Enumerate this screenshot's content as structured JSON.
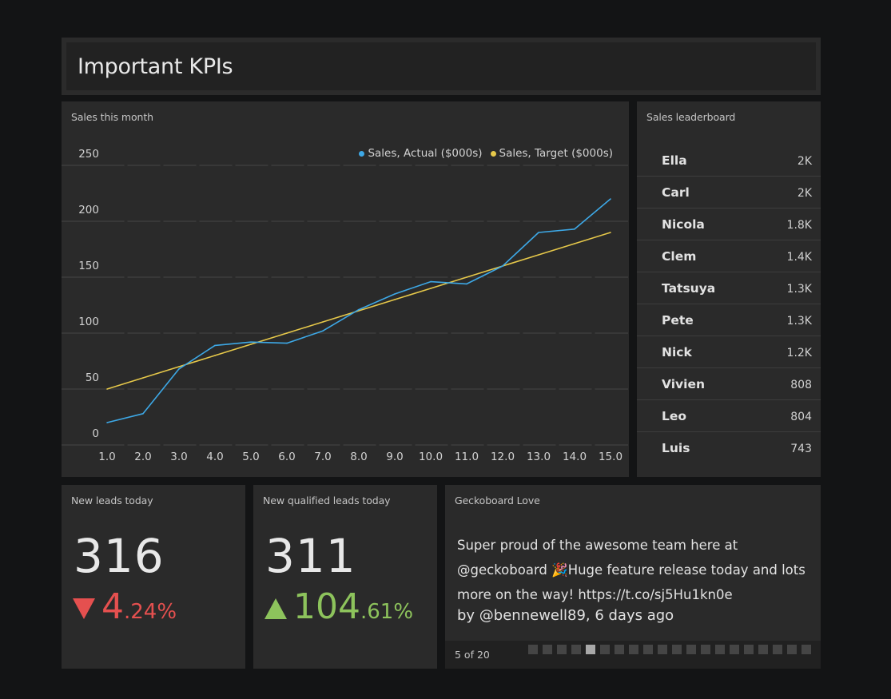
{
  "header": {
    "title": "Important KPIs"
  },
  "colors": {
    "background": "#131415",
    "panel": "#2a2a2a",
    "actual": "#3da8e6",
    "target": "#e6c84a",
    "negative": "#e5504f",
    "positive": "#8dc35c"
  },
  "sales_chart": {
    "title": "Sales this month",
    "legend": [
      {
        "label": "Sales, Actual ($000s)",
        "color": "#3da8e6"
      },
      {
        "label": "Sales, Target ($000s)",
        "color": "#e6c84a"
      }
    ]
  },
  "chart_data": {
    "type": "line",
    "title": "Sales this month",
    "xlabel": "",
    "ylabel": "",
    "x": [
      1.0,
      2.0,
      3.0,
      4.0,
      5.0,
      6.0,
      7.0,
      8.0,
      9.0,
      10.0,
      11.0,
      12.0,
      13.0,
      14.0,
      15.0
    ],
    "x_tick_labels": [
      "1.0",
      "2.0",
      "3.0",
      "4.0",
      "5.0",
      "6.0",
      "7.0",
      "8.0",
      "9.0",
      "10.0",
      "11.0",
      "12.0",
      "13.0",
      "14.0",
      "15.0"
    ],
    "y_ticks": [
      0,
      50,
      100,
      150,
      200,
      250
    ],
    "ylim": [
      0,
      250
    ],
    "xlim": [
      1,
      15
    ],
    "grid": true,
    "legend_position": "top-right",
    "series": [
      {
        "name": "Sales, Actual ($000s)",
        "color": "#3da8e6",
        "values": [
          20,
          28,
          68,
          89,
          92,
          91,
          102,
          121,
          135,
          146,
          144,
          160,
          190,
          193,
          220
        ]
      },
      {
        "name": "Sales, Target ($000s)",
        "color": "#e6c84a",
        "values": [
          50,
          60,
          70,
          80,
          90,
          100,
          110,
          120,
          130,
          140,
          150,
          160,
          170,
          180,
          190
        ]
      }
    ]
  },
  "leaderboard": {
    "title": "Sales leaderboard",
    "rows": [
      {
        "name": "Ella",
        "value": "2K"
      },
      {
        "name": "Carl",
        "value": "2K"
      },
      {
        "name": "Nicola",
        "value": "1.8K"
      },
      {
        "name": "Clem",
        "value": "1.4K"
      },
      {
        "name": "Tatsuya",
        "value": "1.3K"
      },
      {
        "name": "Pete",
        "value": "1.3K"
      },
      {
        "name": "Nick",
        "value": "1.2K"
      },
      {
        "name": "Vivien",
        "value": "808"
      },
      {
        "name": "Leo",
        "value": "804"
      },
      {
        "name": "Luis",
        "value": "743"
      }
    ]
  },
  "new_leads": {
    "title": "New leads today",
    "value": "316",
    "delta_direction": "down",
    "delta_icon": "triangle-down-icon",
    "delta_int": "4",
    "delta_frac": ".24%"
  },
  "qualified_leads": {
    "title": "New qualified leads today",
    "value": "311",
    "delta_direction": "up",
    "delta_icon": "triangle-up-icon",
    "delta_int": "104",
    "delta_frac": ".61%"
  },
  "tweet": {
    "title": "Geckoboard Love",
    "text": "Super proud of the awesome team here at @geckoboard 🎉Huge feature release today and lots more on the way! https://t.co/sj5Hu1kn0e",
    "author_line": "by @bennewell89, 6 days ago",
    "page_label": "5 of 20",
    "current_page": 5,
    "total_pages": 20
  }
}
